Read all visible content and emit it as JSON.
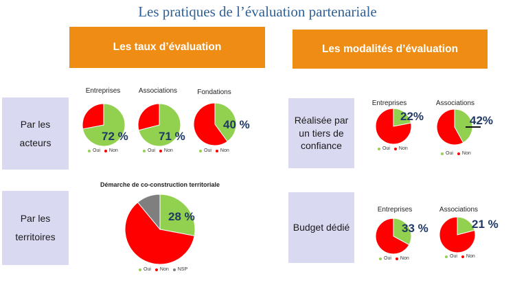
{
  "title": "Les pratiques de l’évaluation partenariale",
  "headers": {
    "left": "Les taux d’évaluation",
    "right": "Les modalités  d’évaluation"
  },
  "rows": {
    "acteurs": [
      "Par les",
      "acteurs"
    ],
    "territoires": [
      "Par les",
      "territoires"
    ],
    "tiers": [
      "Réalisée par",
      "un tiers de",
      "confiance"
    ],
    "budget": "Budget dédié"
  },
  "colors": {
    "oui": "#92d050",
    "non": "#ff0000",
    "nsp": "#7f7f7f",
    "banner": "#ef8c13",
    "rowbox": "#d9d9f2"
  },
  "chart_data": [
    {
      "id": "entreprises-taux",
      "type": "pie",
      "title": "Entreprises",
      "label": "72 %",
      "series": [
        {
          "name": "Oui",
          "value": 72
        },
        {
          "name": "Non",
          "value": 28
        }
      ]
    },
    {
      "id": "associations-taux",
      "type": "pie",
      "title": "Associations",
      "label": "71 %",
      "series": [
        {
          "name": "Oui",
          "value": 71
        },
        {
          "name": "Non",
          "value": 29
        }
      ]
    },
    {
      "id": "fondations-taux",
      "type": "pie",
      "title": "Fondations",
      "label": "40 %",
      "series": [
        {
          "name": "Oui",
          "value": 40
        },
        {
          "name": "Non",
          "value": 60
        }
      ]
    },
    {
      "id": "territoires",
      "type": "pie",
      "title": "Démarche de co-construction territoriale",
      "label": "28 %",
      "series": [
        {
          "name": "Oui",
          "value": 28
        },
        {
          "name": "Non",
          "value": 61
        },
        {
          "name": "NSP",
          "value": 11
        }
      ]
    },
    {
      "id": "entreprises-tiers",
      "type": "pie",
      "title": "Entreprises",
      "label": "22%",
      "series": [
        {
          "name": "Oui",
          "value": 22
        },
        {
          "name": "Non",
          "value": 78
        }
      ]
    },
    {
      "id": "associations-tiers",
      "type": "pie",
      "title": "Associations",
      "label": "42%",
      "series": [
        {
          "name": "Oui",
          "value": 42
        },
        {
          "name": "Non",
          "value": 58
        }
      ]
    },
    {
      "id": "entreprises-budget",
      "type": "pie",
      "title": "Entreprises",
      "label": "33 %",
      "series": [
        {
          "name": "Oui",
          "value": 33
        },
        {
          "name": "Non",
          "value": 67
        }
      ]
    },
    {
      "id": "associations-budget",
      "type": "pie",
      "title": "Associations",
      "label": "21 %",
      "series": [
        {
          "name": "Oui",
          "value": 21
        },
        {
          "name": "Non",
          "value": 79
        }
      ]
    }
  ]
}
